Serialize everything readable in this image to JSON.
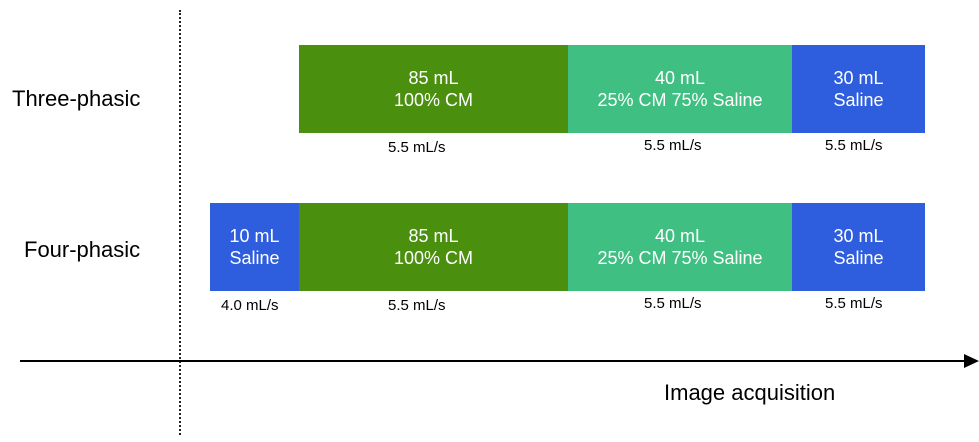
{
  "colors": {
    "contrast_full": "#4a8f0e",
    "contrast_mix": "#3fbf82",
    "saline": "#2e5ede"
  },
  "rows": [
    {
      "label": "Three-phasic",
      "segments": [
        {
          "line1": "85 mL",
          "line2": "100% CM",
          "rate": "5.5 mL/s",
          "color_key": "contrast_full"
        },
        {
          "line1": "40 mL",
          "line2": "25% CM 75% Saline",
          "rate": "5.5 mL/s",
          "color_key": "contrast_mix"
        },
        {
          "line1": "30 mL",
          "line2": "Saline",
          "rate": "5.5 mL/s",
          "color_key": "saline"
        }
      ]
    },
    {
      "label": "Four-phasic",
      "segments": [
        {
          "line1": "10 mL",
          "line2": "Saline",
          "rate": "4.0 mL/s",
          "color_key": "saline"
        },
        {
          "line1": "85 mL",
          "line2": "100% CM",
          "rate": "5.5 mL/s",
          "color_key": "contrast_full"
        },
        {
          "line1": "40 mL",
          "line2": "25% CM 75% Saline",
          "rate": "5.5 mL/s",
          "color_key": "contrast_mix"
        },
        {
          "line1": "30 mL",
          "line2": "Saline",
          "rate": "5.5 mL/s",
          "color_key": "saline"
        }
      ]
    }
  ],
  "axis": {
    "label": "Image acquisition"
  }
}
